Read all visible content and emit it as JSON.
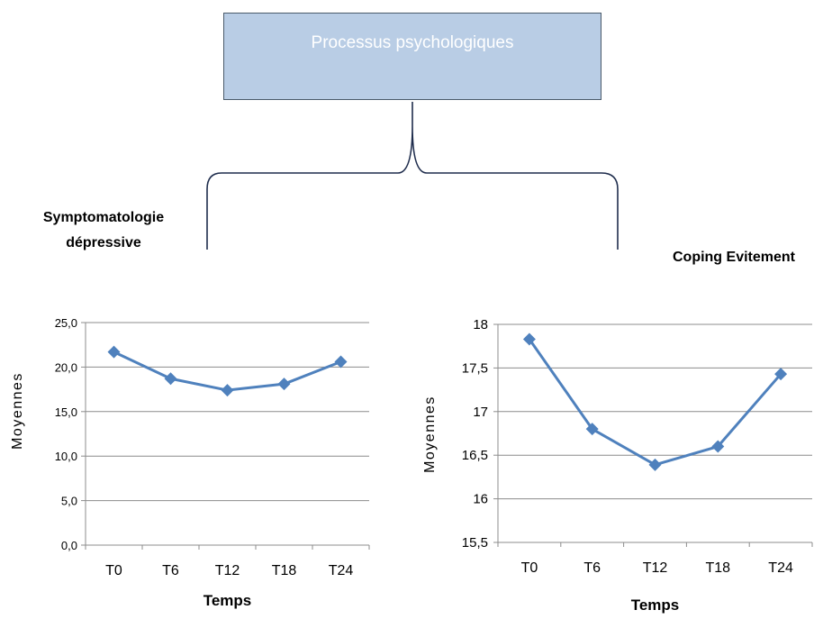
{
  "diagram": {
    "root_label": "Processus psychologiques",
    "left_heading_line1": "Symptomatologie",
    "left_heading_line2": "dépressive",
    "right_heading": "Coping Evitement",
    "colors": {
      "box_fill": "#b9cde5",
      "line": "#4f81bd",
      "brace": "#1f2d4d"
    }
  },
  "chart_data": [
    {
      "type": "line",
      "categories": [
        "T0",
        "T6",
        "T12",
        "T18",
        "T24"
      ],
      "series": [
        {
          "values": [
            21.7,
            18.7,
            17.4,
            18.1,
            20.6
          ]
        }
      ],
      "xlabel": "Temps",
      "ylabel": "Moyennes",
      "ylim": [
        0,
        25
      ],
      "yticks": [
        "0,0",
        "5,0",
        "10,0",
        "15,0",
        "20,0",
        "25,0"
      ],
      "grid": true,
      "color": "#4f81bd"
    },
    {
      "type": "line",
      "categories": [
        "T0",
        "T6",
        "T12",
        "T18",
        "T24"
      ],
      "series": [
        {
          "values": [
            17.83,
            16.8,
            16.39,
            16.6,
            17.43
          ]
        }
      ],
      "xlabel": "Temps",
      "ylabel": "Moyennes",
      "ylim": [
        15.5,
        18
      ],
      "yticks": [
        "15,5",
        "16",
        "16,5",
        "17",
        "17,5",
        "18"
      ],
      "grid": true,
      "color": "#4f81bd"
    }
  ]
}
